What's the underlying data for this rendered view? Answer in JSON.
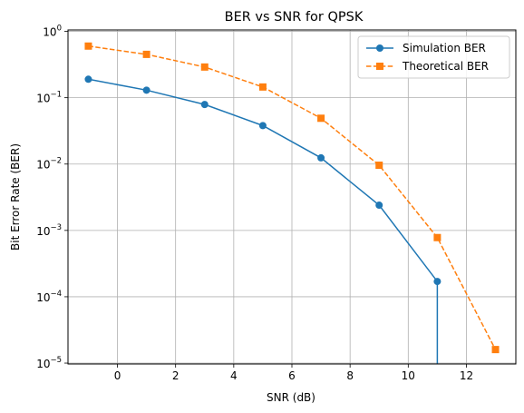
{
  "chart_data": {
    "type": "line",
    "title": "BER vs SNR for QPSK",
    "xlabel": "SNR (dB)",
    "ylabel": "Bit Error Rate (BER)",
    "xlim": [
      -1.7,
      13.7
    ],
    "ylim": [
      9.7e-06,
      1.05
    ],
    "yscale": "log",
    "grid": true,
    "legend_position": "top-right",
    "x_ticks": [
      0,
      2,
      4,
      6,
      8,
      10,
      12
    ],
    "x_tick_labels": [
      "0",
      "2",
      "4",
      "6",
      "8",
      "10",
      "12"
    ],
    "y_ticks": [
      1,
      0.1,
      0.01,
      0.001,
      0.0001,
      1e-05
    ],
    "y_tick_bases": [
      "10",
      "10",
      "10",
      "10",
      "10",
      "10"
    ],
    "y_tick_exponents": [
      "0",
      "−1",
      "−2",
      "−3",
      "−4",
      "−5"
    ],
    "series": [
      {
        "name": "Simulation BER",
        "color": "#1f77b4",
        "line_style": "solid",
        "marker": "circle",
        "x": [
          -1,
          1,
          3,
          5,
          7,
          9,
          11
        ],
        "y": [
          0.19,
          0.13,
          0.079,
          0.038,
          0.0124,
          0.0024,
          0.00017
        ],
        "drop_to_zero_at": 11
      },
      {
        "name": "Theoretical BER",
        "color": "#ff7f0e",
        "line_style": "dashed",
        "marker": "square",
        "x": [
          -1,
          1,
          3,
          5,
          7,
          9,
          11,
          13
        ],
        "y": [
          0.6,
          0.45,
          0.29,
          0.145,
          0.049,
          0.0096,
          0.00078,
          1.6e-05
        ]
      }
    ]
  }
}
